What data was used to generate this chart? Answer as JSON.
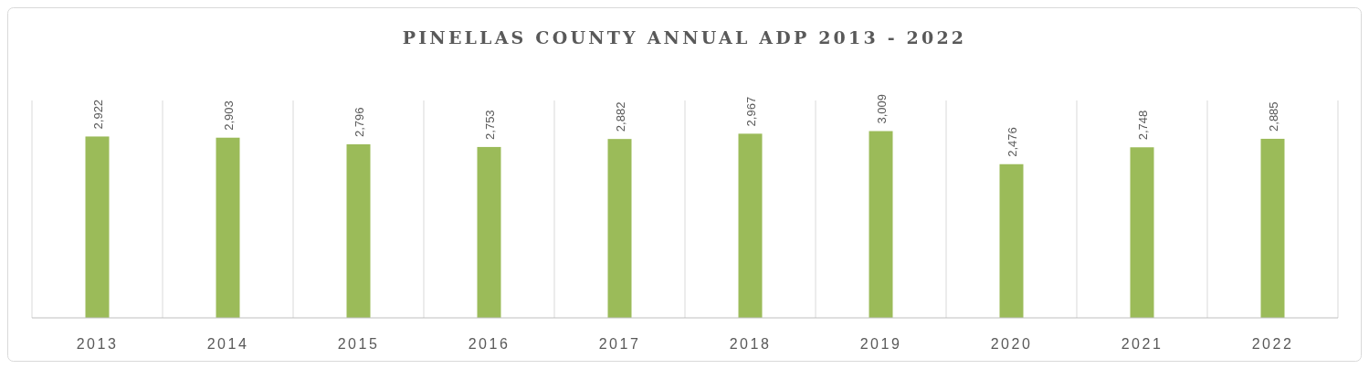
{
  "chart_data": {
    "type": "bar",
    "title": "PINELLAS COUNTY ANNUAL ADP 2013 - 2022",
    "categories": [
      "2013",
      "2014",
      "2015",
      "2016",
      "2017",
      "2018",
      "2019",
      "2020",
      "2021",
      "2022"
    ],
    "values": [
      2922,
      2903,
      2796,
      2753,
      2882,
      2967,
      3009,
      2476,
      2748,
      2885
    ],
    "value_labels": [
      "2,922",
      "2,903",
      "2,796",
      "2,753",
      "2,882",
      "2,967",
      "3,009",
      "2,476",
      "2,748",
      "2,885"
    ],
    "color": "#9bbb59",
    "tick_labels": "x",
    "grid": "x"
  }
}
